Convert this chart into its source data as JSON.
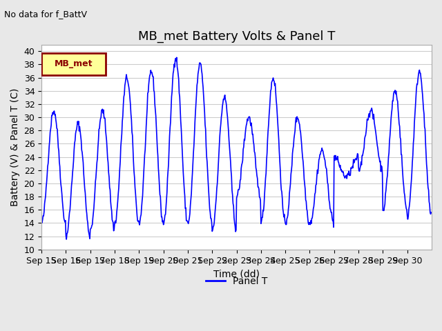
{
  "title": "MB_met Battery Volts & Panel T",
  "subtitle": "No data for f_BattV",
  "ylabel": "Battery (V) & Panel T (C)",
  "xlabel": "Time (dd)",
  "ylim": [
    10,
    41
  ],
  "yticks": [
    10,
    12,
    14,
    16,
    18,
    20,
    22,
    24,
    26,
    28,
    30,
    32,
    34,
    36,
    38,
    40
  ],
  "xtick_positions": [
    0,
    1,
    2,
    3,
    4,
    5,
    6,
    7,
    8,
    9,
    10,
    11,
    12,
    13,
    14,
    15
  ],
  "xtick_labels": [
    "Sep 15",
    "Sep 16",
    "Sep 17",
    "Sep 18",
    "Sep 19",
    "Sep 20",
    "Sep 21",
    "Sep 22",
    "Sep 23",
    "Sep 24",
    "Sep 25",
    "Sep 26",
    "Sep 27",
    "Sep 28",
    "Sep 29",
    "Sep 30"
  ],
  "line_color": "#0000FF",
  "legend_label": "Panel T",
  "legend_box_color": "#FFFF99",
  "legend_box_border": "#8B0000",
  "legend_box_text": "MB_met",
  "legend_box_text_color": "#8B0000",
  "background_color": "#E8E8E8",
  "plot_bg_color": "#FFFFFF",
  "title_fontsize": 13,
  "axis_fontsize": 10,
  "tick_fontsize": 9,
  "day_peaks": [
    31,
    29,
    31,
    36,
    37,
    39,
    38,
    33,
    30,
    36,
    30,
    25,
    21,
    31,
    34,
    37
  ],
  "day_mins": [
    14,
    12,
    13,
    14,
    14,
    14,
    14,
    13,
    18,
    14,
    14,
    14,
    24,
    22,
    16,
    15
  ]
}
